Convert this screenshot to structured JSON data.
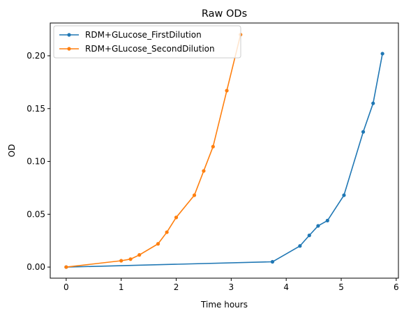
{
  "chart_data": {
    "type": "line",
    "title": "Raw ODs",
    "xlabel": "Time hours",
    "ylabel": "OD",
    "xlim": [
      -0.29,
      6.04
    ],
    "ylim": [
      -0.0105,
      0.231
    ],
    "xticks": [
      0,
      1,
      2,
      3,
      4,
      5,
      6
    ],
    "yticks": [
      0.0,
      0.05,
      0.1,
      0.15,
      0.2
    ],
    "xtick_labels": [
      "0",
      "1",
      "2",
      "3",
      "4",
      "5",
      "6"
    ],
    "ytick_labels": [
      "0.00",
      "0.05",
      "0.10",
      "0.15",
      "0.20"
    ],
    "grid": false,
    "legend_position": "upper-left",
    "series": [
      {
        "name": "RDM+GLucose_FirstDilution",
        "color": "#1f77b4",
        "marker": "dot",
        "x": [
          0.0,
          3.75,
          4.25,
          4.42,
          4.58,
          4.75,
          5.05,
          5.4,
          5.58,
          5.75
        ],
        "y": [
          0.0,
          0.005,
          0.02,
          0.03,
          0.039,
          0.044,
          0.068,
          0.128,
          0.155,
          0.202
        ]
      },
      {
        "name": "RDM+GLucose_SecondDilution",
        "color": "#ff7f0e",
        "marker": "dot",
        "x": [
          0.0,
          1.0,
          1.17,
          1.33,
          1.67,
          1.83,
          2.0,
          2.33,
          2.5,
          2.67,
          2.92,
          3.17
        ],
        "y": [
          0.0,
          0.006,
          0.0075,
          0.0115,
          0.022,
          0.033,
          0.047,
          0.068,
          0.091,
          0.114,
          0.167,
          0.22
        ]
      }
    ]
  }
}
